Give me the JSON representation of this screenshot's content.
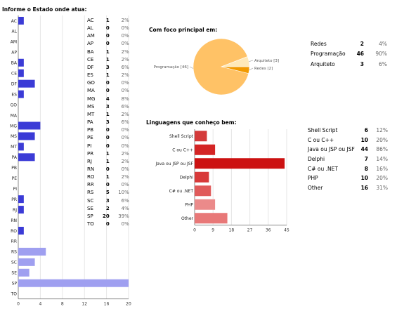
{
  "chart_data": [
    {
      "type": "bar",
      "title": "Informe o Estado onde atua:",
      "orientation": "horizontal",
      "color": "#3b3bd6",
      "highlight_color": "#9f9ff0",
      "categories": [
        "AC",
        "AL",
        "AM",
        "AP",
        "BA",
        "CE",
        "DF",
        "ES",
        "GO",
        "MA",
        "MG",
        "MS",
        "MT",
        "PA",
        "PB",
        "PE",
        "PI",
        "PR",
        "RJ",
        "RN",
        "RO",
        "RR",
        "RS",
        "SC",
        "SE",
        "SP",
        "TO"
      ],
      "values": [
        1,
        0,
        0,
        0,
        1,
        1,
        3,
        1,
        0,
        0,
        4,
        3,
        1,
        3,
        0,
        0,
        0,
        1,
        1,
        0,
        1,
        0,
        5,
        3,
        2,
        20,
        0
      ],
      "percents": [
        "2%",
        "0%",
        "0%",
        "0%",
        "2%",
        "2%",
        "6%",
        "2%",
        "0%",
        "0%",
        "8%",
        "6%",
        "2%",
        "6%",
        "0%",
        "0%",
        "0%",
        "2%",
        "2%",
        "0%",
        "2%",
        "0%",
        "10%",
        "6%",
        "4%",
        "39%",
        "0%"
      ],
      "xlim": [
        0,
        20
      ],
      "xticks": [
        "0",
        "4",
        "8",
        "12",
        "16",
        "20"
      ],
      "grid": true
    },
    {
      "type": "pie",
      "title": "Com foco principal em:",
      "categories": [
        "Redes",
        "Programação",
        "Arquiteto"
      ],
      "values": [
        2,
        46,
        3
      ],
      "percents": [
        "4%",
        "90%",
        "6%"
      ],
      "slice_labels": [
        "Redes [2]",
        "Programação [46]",
        "Arquiteto [3]"
      ],
      "colors": [
        "#f29a00",
        "#ffc266",
        "#ffe9b8"
      ]
    },
    {
      "type": "bar",
      "title": "Linguagens que conheço bem:",
      "orientation": "horizontal",
      "categories": [
        "Shell Script",
        "C ou C++",
        "Java ou JSP ou JSF",
        "Delphi",
        "C# ou .NET",
        "PHP",
        "Other"
      ],
      "table_labels": [
        "Shell Script",
        "C ou C++",
        "Java ou JSP ou JSF",
        "Delphi",
        "C# ou .NET",
        "PHP",
        "Other"
      ],
      "values": [
        6,
        10,
        44,
        7,
        8,
        10,
        16
      ],
      "percents": [
        "12%",
        "20%",
        "86%",
        "14%",
        "16%",
        "20%",
        "31%"
      ],
      "colors": [
        "#d43a3a",
        "#d42424",
        "#cc1111",
        "#d83a3a",
        "#e05a5a",
        "#eb8a8a",
        "#e87878"
      ],
      "xlim": [
        0,
        45
      ],
      "xticks": [
        "0",
        "9",
        "18",
        "27",
        "36",
        "45"
      ],
      "grid": true
    }
  ]
}
